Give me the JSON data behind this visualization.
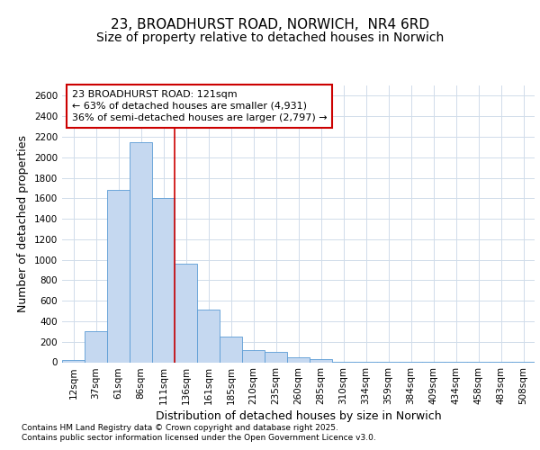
{
  "title1": "23, BROADHURST ROAD, NORWICH,  NR4 6RD",
  "title2": "Size of property relative to detached houses in Norwich",
  "xlabel": "Distribution of detached houses by size in Norwich",
  "ylabel": "Number of detached properties",
  "categories": [
    "12sqm",
    "37sqm",
    "61sqm",
    "86sqm",
    "111sqm",
    "136sqm",
    "161sqm",
    "185sqm",
    "210sqm",
    "235sqm",
    "260sqm",
    "285sqm",
    "310sqm",
    "334sqm",
    "359sqm",
    "384sqm",
    "409sqm",
    "434sqm",
    "458sqm",
    "483sqm",
    "508sqm"
  ],
  "values": [
    25,
    300,
    1680,
    2150,
    1600,
    960,
    510,
    250,
    120,
    100,
    50,
    30,
    5,
    5,
    5,
    5,
    5,
    5,
    5,
    5,
    5
  ],
  "bar_color": "#c5d8f0",
  "bar_edge_color": "#5b9bd5",
  "background_color": "#ffffff",
  "grid_color": "#d0dcea",
  "vline_x": 4.5,
  "vline_color": "#cc0000",
  "annotation_line1": "23 BROADHURST ROAD: 121sqm",
  "annotation_line2": "← 63% of detached houses are smaller (4,931)",
  "annotation_line3": "36% of semi-detached houses are larger (2,797) →",
  "annotation_box_color": "#cc0000",
  "ylim": [
    0,
    2700
  ],
  "yticks": [
    0,
    200,
    400,
    600,
    800,
    1000,
    1200,
    1400,
    1600,
    1800,
    2000,
    2200,
    2400,
    2600
  ],
  "footer_line1": "Contains HM Land Registry data © Crown copyright and database right 2025.",
  "footer_line2": "Contains public sector information licensed under the Open Government Licence v3.0.",
  "title_fontsize": 11,
  "subtitle_fontsize": 10,
  "axis_label_fontsize": 9,
  "tick_fontsize": 7.5,
  "annotation_fontsize": 8,
  "footer_fontsize": 6.5
}
